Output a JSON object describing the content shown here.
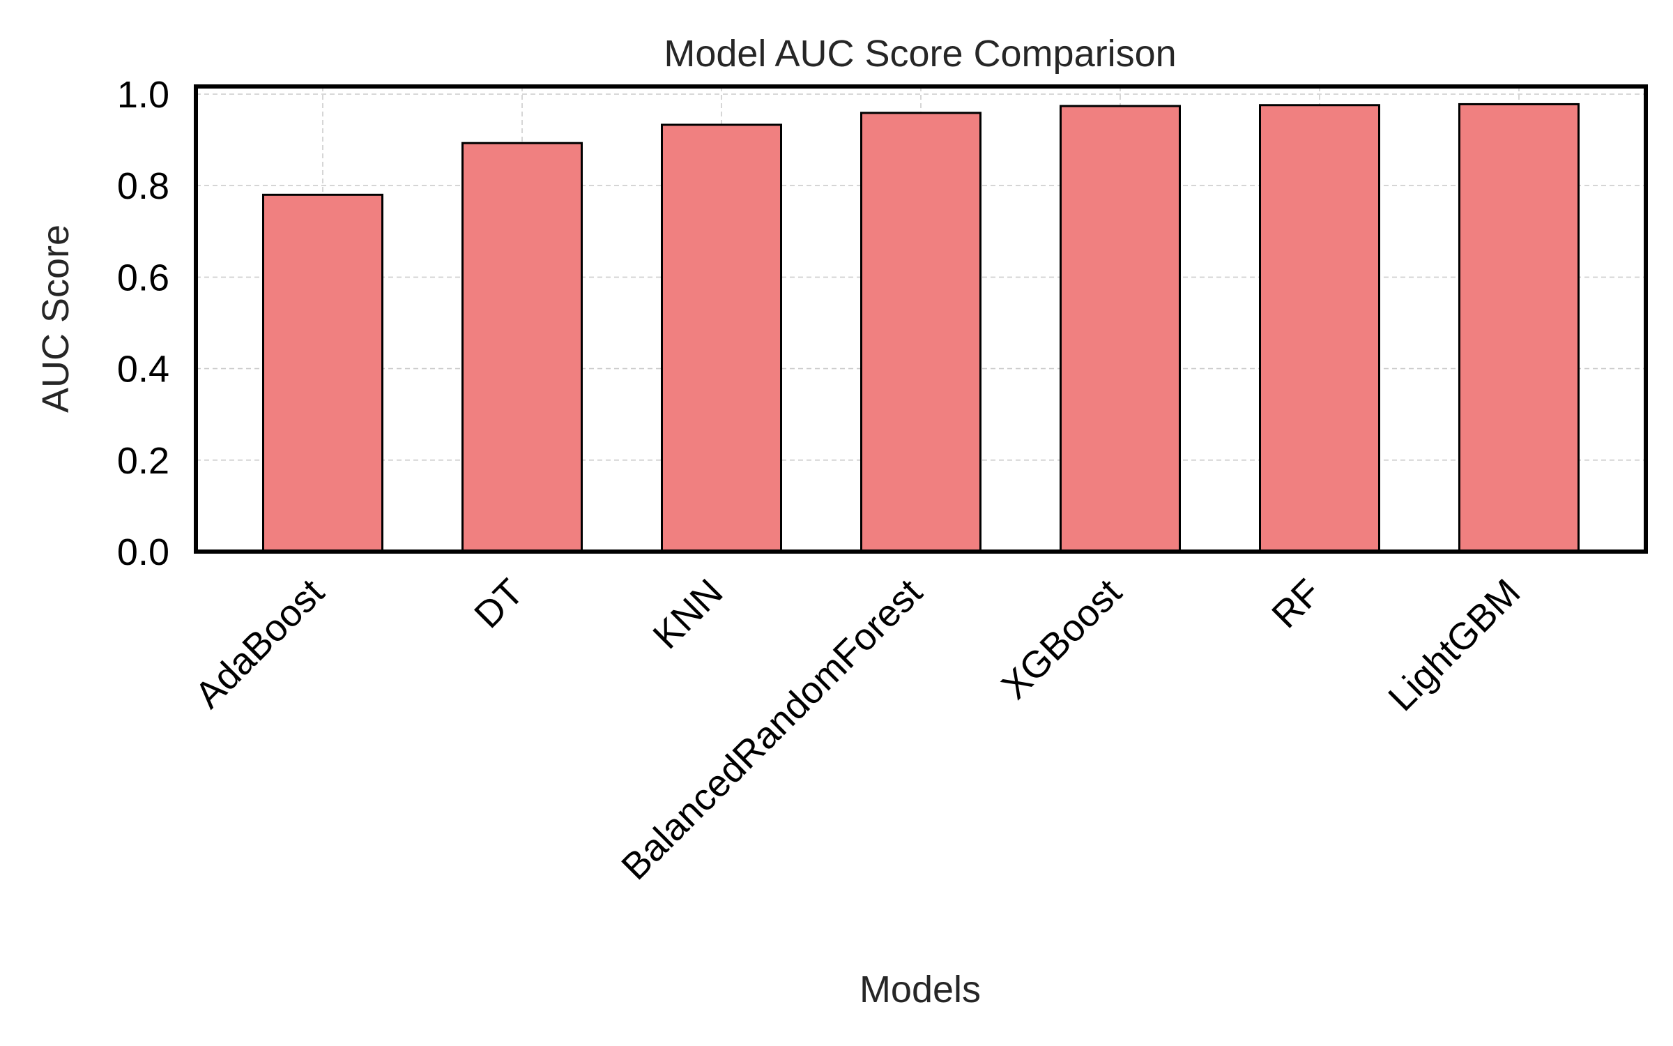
{
  "chart_data": {
    "type": "bar",
    "title": "Model AUC Score Comparison",
    "xlabel": "Models",
    "ylabel": "AUC Score",
    "categories": [
      "AdaBoost",
      "DT",
      "KNN",
      "BalancedRandomForest",
      "XGBoost",
      "RF",
      "LightGBM"
    ],
    "values": [
      0.78,
      0.893,
      0.933,
      0.959,
      0.974,
      0.976,
      0.978
    ],
    "ylim": [
      0,
      1.0
    ],
    "yticks": [
      "0.0",
      "0.2",
      "0.4",
      "0.6",
      "0.8",
      "1.0"
    ],
    "grid": true,
    "bar_color": "#f08080",
    "edge_color": "#000000"
  }
}
